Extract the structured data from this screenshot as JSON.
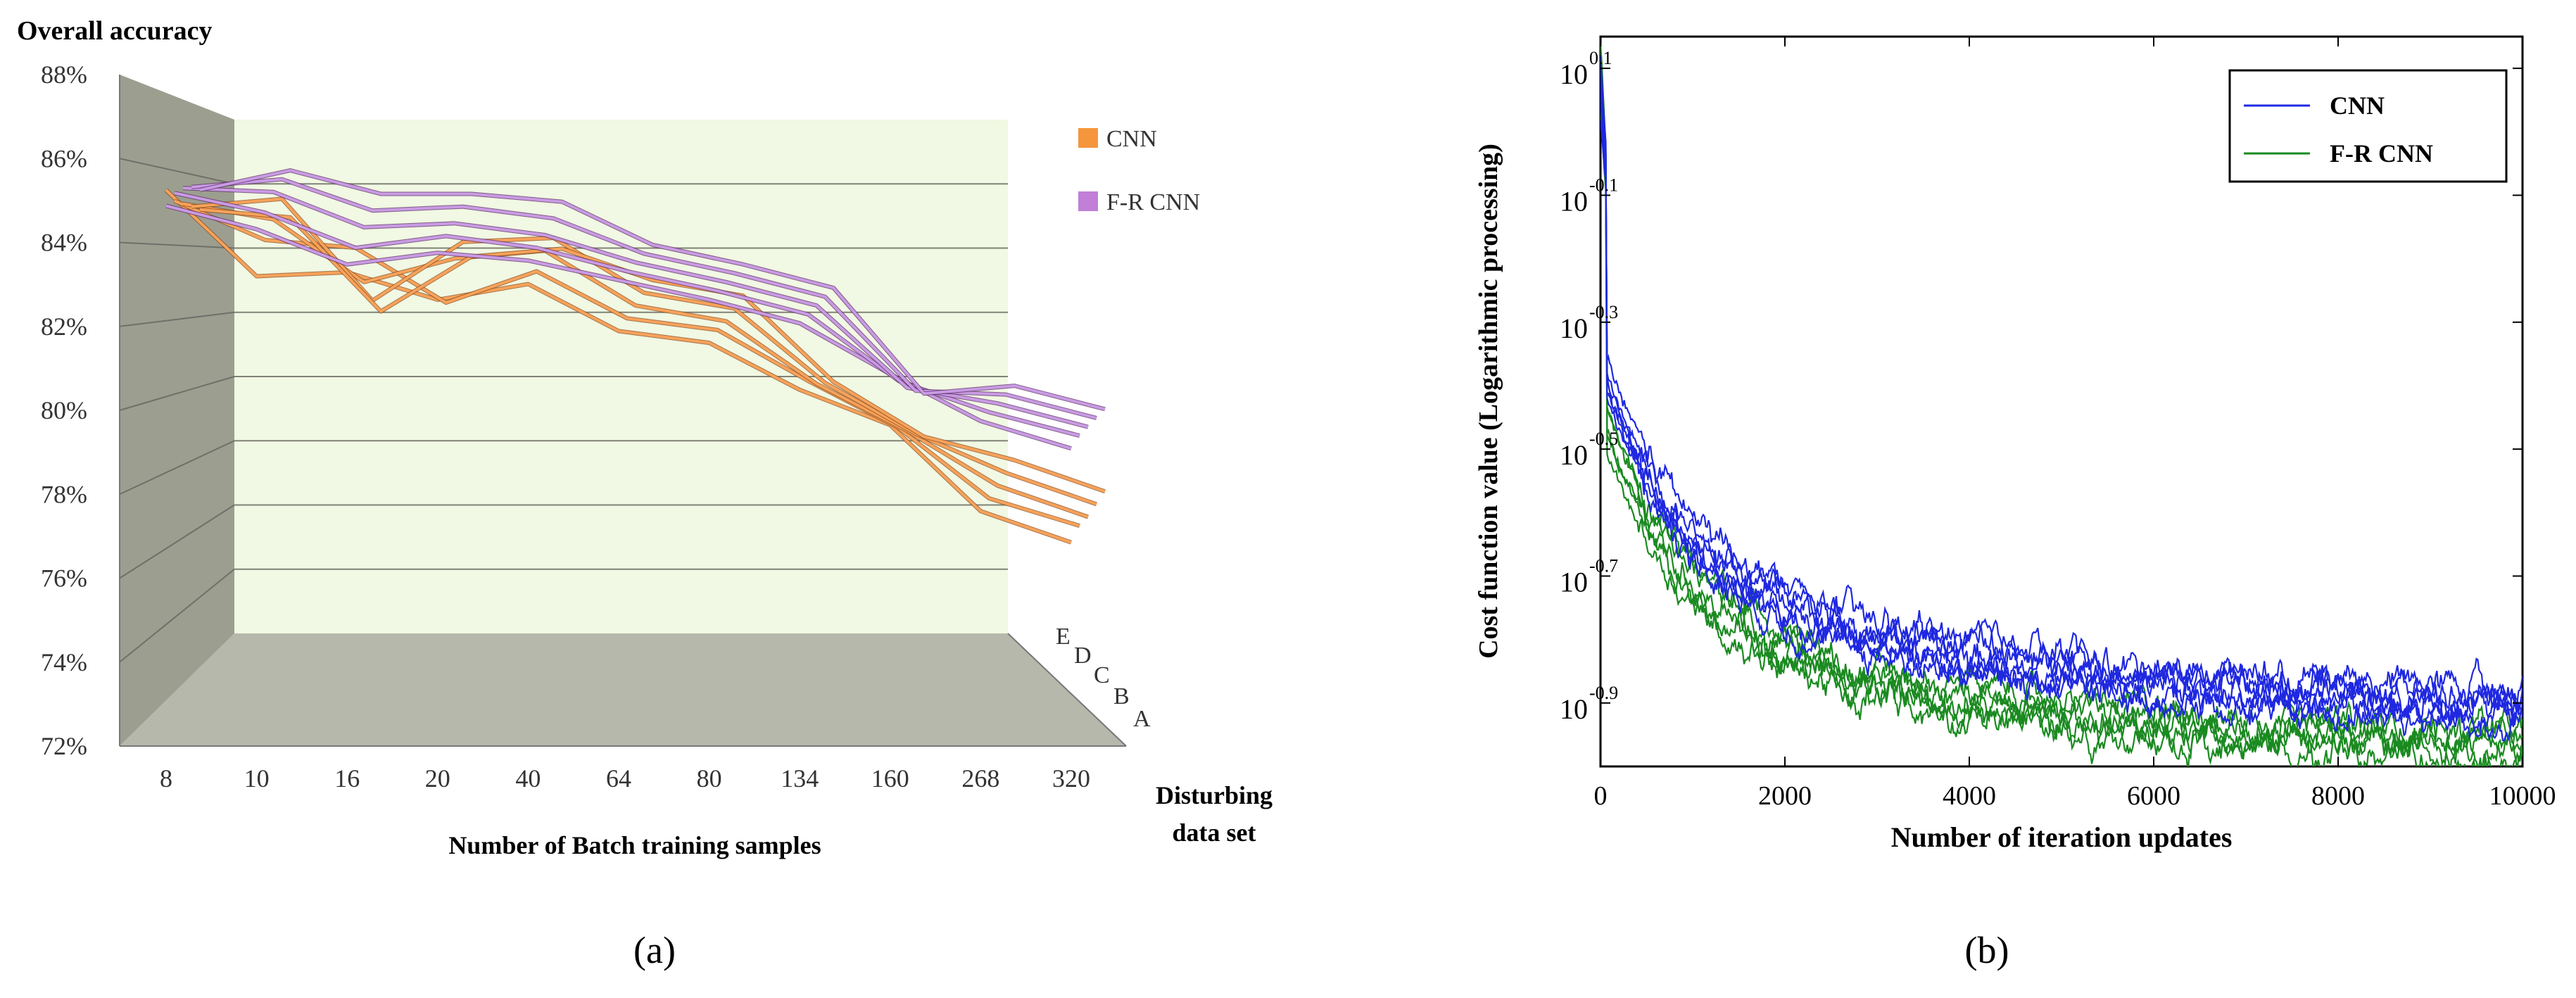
{
  "panel_labels": {
    "a": "(a)",
    "b": "(b)"
  },
  "colors": {
    "cnn_light": "#f7a25a",
    "cnn_dark": "#8a4a1a",
    "frcnn_light": "#c89be2",
    "frcnn_dark": "#5c2a6a",
    "wall_side": "#9c9e90",
    "wall_back": "#f1f8e3",
    "floor": "#b5b8ab",
    "blue": "#1f28e0",
    "green": "#1a8a20"
  },
  "chart_data": [
    {
      "type": "line",
      "projection": "3d",
      "title": "Overall accuracy",
      "xlabel": "Number of Batch training  samples",
      "ylabel": "Overall accuracy",
      "zlabel_lines": [
        "Disturbing",
        "data set"
      ],
      "categories": [
        "8",
        "10",
        "16",
        "20",
        "40",
        "64",
        "80",
        "134",
        "160",
        "268",
        "320"
      ],
      "depth_categories": [
        "A",
        "B",
        "C",
        "D",
        "E"
      ],
      "ylim": [
        72,
        88
      ],
      "yticks": [
        "88%",
        "86%",
        "84%",
        "82%",
        "80%",
        "78%",
        "76%",
        "74%",
        "72%"
      ],
      "legend": [
        {
          "label": "CNN",
          "color": "#f5963c"
        },
        {
          "label": "F-R CNN",
          "color": "#c17fd8"
        }
      ],
      "series": [
        {
          "name": "CNN A",
          "group": "CNN",
          "values": [
            86.2,
            84.0,
            84.1,
            83.4,
            83.8,
            82.6,
            82.3,
            81.1,
            80.2,
            78.0,
            77.2
          ]
        },
        {
          "name": "CNN B",
          "group": "CNN",
          "values": [
            85.8,
            84.8,
            84.6,
            83.2,
            84.0,
            82.8,
            82.5,
            81.2,
            80.0,
            78.2,
            77.5
          ]
        },
        {
          "name": "CNN C",
          "group": "CNN",
          "values": [
            85.6,
            85.2,
            83.6,
            84.2,
            84.4,
            83.0,
            82.6,
            81.0,
            79.8,
            78.4,
            77.6
          ]
        },
        {
          "name": "CNN D",
          "group": "CNN",
          "values": [
            85.4,
            85.6,
            83.0,
            84.5,
            84.6,
            83.2,
            82.8,
            80.9,
            79.6,
            78.6,
            77.8
          ]
        },
        {
          "name": "CNN E",
          "group": "CNN",
          "values": [
            85.2,
            85.0,
            82.6,
            84.0,
            84.2,
            83.4,
            83.0,
            80.8,
            79.4,
            78.8,
            78.0
          ]
        },
        {
          "name": "F-R CNN A",
          "group": "F-R CNN",
          "values": [
            85.8,
            85.2,
            84.3,
            84.6,
            84.4,
            83.9,
            83.4,
            82.8,
            81.5,
            80.3,
            79.6
          ]
        },
        {
          "name": "F-R CNN B",
          "group": "F-R CNN",
          "values": [
            86.0,
            85.5,
            84.6,
            84.9,
            84.6,
            84.0,
            83.5,
            82.9,
            81.2,
            80.4,
            79.8
          ]
        },
        {
          "name": "F-R CNN C",
          "group": "F-R CNN",
          "values": [
            86.0,
            85.9,
            85.0,
            85.1,
            84.8,
            84.1,
            83.6,
            83.0,
            80.9,
            80.5,
            79.9
          ]
        },
        {
          "name": "F-R CNN D",
          "group": "F-R CNN",
          "values": [
            85.9,
            86.1,
            85.3,
            85.4,
            85.1,
            84.2,
            83.7,
            83.1,
            80.7,
            80.6,
            80.0
          ]
        },
        {
          "name": "F-R CNN E",
          "group": "F-R CNN",
          "values": [
            85.7,
            86.2,
            85.6,
            85.6,
            85.4,
            84.3,
            83.8,
            83.2,
            80.5,
            80.7,
            80.1
          ]
        }
      ]
    },
    {
      "type": "line",
      "yscale": "log",
      "xlabel": "Number of iteration updates",
      "ylabel": "Cost function value (Logarithmic processing)",
      "xlim": [
        0,
        10000
      ],
      "xticks": [
        0,
        2000,
        4000,
        6000,
        8000,
        10000
      ],
      "ylim_exp": [
        -1.0,
        0.15
      ],
      "ytick_exponents": [
        "0.1",
        "-0.1",
        "-0.3",
        "-0.5",
        "-0.7",
        "-0.9"
      ],
      "ytick_base": "10",
      "legend": [
        {
          "label": "CNN",
          "color": "#1f28e0"
        },
        {
          "label": "F-R CNN",
          "color": "#1a8a20"
        }
      ],
      "curve_model": "log10(cost) = a + b*exp(-x/900) + c*exp(-x/5000), plus noise",
      "series": [
        {
          "name": "CNN 1",
          "group": "CNN",
          "a": -0.95,
          "b": 0.35,
          "c": 0.22,
          "start": 0.12
        },
        {
          "name": "CNN 2",
          "group": "CNN",
          "a": -0.93,
          "b": 0.34,
          "c": 0.23,
          "start": 0.1
        },
        {
          "name": "CNN 3",
          "group": "CNN",
          "a": -0.91,
          "b": 0.33,
          "c": 0.22,
          "start": 0.08
        },
        {
          "name": "CNN 4",
          "group": "CNN",
          "a": -0.94,
          "b": 0.36,
          "c": 0.21,
          "start": 0.05
        },
        {
          "name": "CNN 5",
          "group": "CNN",
          "a": -0.92,
          "b": 0.35,
          "c": 0.24,
          "start": 0.02
        },
        {
          "name": "CNN 6",
          "group": "CNN",
          "a": -0.96,
          "b": 0.34,
          "c": 0.23,
          "start": 0.07
        },
        {
          "name": "F-R CNN 1",
          "group": "F-R CNN",
          "a": -1.02,
          "b": 0.35,
          "c": 0.22,
          "start": 0.14
        },
        {
          "name": "F-R CNN 2",
          "group": "F-R CNN",
          "a": -1.0,
          "b": 0.34,
          "c": 0.21,
          "start": 0.12
        },
        {
          "name": "F-R CNN 3",
          "group": "F-R CNN",
          "a": -0.98,
          "b": 0.36,
          "c": 0.22,
          "start": 0.1
        },
        {
          "name": "F-R CNN 4",
          "group": "F-R CNN",
          "a": -1.01,
          "b": 0.33,
          "c": 0.2,
          "start": 0.06
        },
        {
          "name": "F-R CNN 5",
          "group": "F-R CNN",
          "a": -0.99,
          "b": 0.35,
          "c": 0.23,
          "start": 0.03
        }
      ]
    }
  ]
}
